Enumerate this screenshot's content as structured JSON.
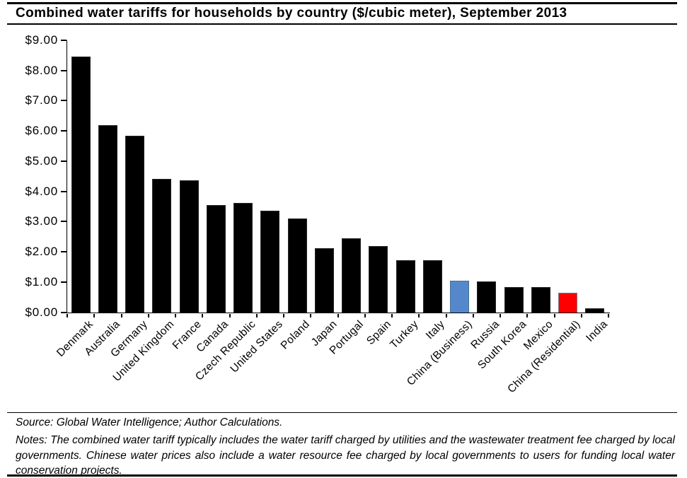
{
  "title": "Combined water tariffs for households by country ($/cubic meter), September 2013",
  "chart_data": {
    "type": "bar",
    "title": "Combined water tariffs for households by country ($/cubic meter), September 2013",
    "categories": [
      "Denmark",
      "Australia",
      "Germany",
      "United Kingdom",
      "France",
      "Canada",
      "Czech Republic",
      "United States",
      "Poland",
      "Japan",
      "Portugal",
      "Spain",
      "Turkey",
      "Italy",
      "China (Business)",
      "Russia",
      "South Korea",
      "Mexico",
      "China (Residential)",
      "India"
    ],
    "values": [
      8.45,
      6.2,
      5.85,
      4.42,
      4.36,
      3.55,
      3.62,
      3.37,
      3.1,
      2.13,
      2.44,
      2.2,
      1.71,
      1.73,
      1.04,
      1.01,
      0.82,
      0.82,
      0.65,
      0.14
    ],
    "bar_colors": [
      "#000000",
      "#000000",
      "#000000",
      "#000000",
      "#000000",
      "#000000",
      "#000000",
      "#000000",
      "#000000",
      "#000000",
      "#000000",
      "#000000",
      "#000000",
      "#000000",
      "#5588CB",
      "#000000",
      "#000000",
      "#000000",
      "#FF0000",
      "#000000"
    ],
    "bar_borders": [
      "#262626",
      "#262626",
      "#262626",
      "#262626",
      "#262626",
      "#262626",
      "#262626",
      "#262626",
      "#262626",
      "#262626",
      "#262626",
      "#262626",
      "#262626",
      "#262626",
      "#41719C",
      "#262626",
      "#262626",
      "#262626",
      "#7F7F7F",
      "#262626"
    ],
    "xlabel": "",
    "ylabel": "",
    "ylim": [
      0,
      9
    ],
    "ytick_step": 1,
    "y_tick_labels": [
      "$9.00",
      "$8.00",
      "$7.00",
      "$6.00",
      "$5.00",
      "$4.00",
      "$3.00",
      "$2.00",
      "$1.00",
      "$0.00"
    ],
    "grid": false,
    "legend": "none",
    "x_label_rotation_deg": 45,
    "highlight_colors": {
      "china_business": "#5588CB",
      "china_residential": "#FF0000",
      "default": "#000000"
    }
  },
  "footer": {
    "source": "Source: Global Water Intelligence; Author Calculations.",
    "notes": "Notes: The combined water tariff typically includes the water tariff charged by utilities and the wastewater treatment fee charged by local governments. Chinese water prices also include a water resource fee charged by local governments to users for funding local water conservation projects."
  }
}
